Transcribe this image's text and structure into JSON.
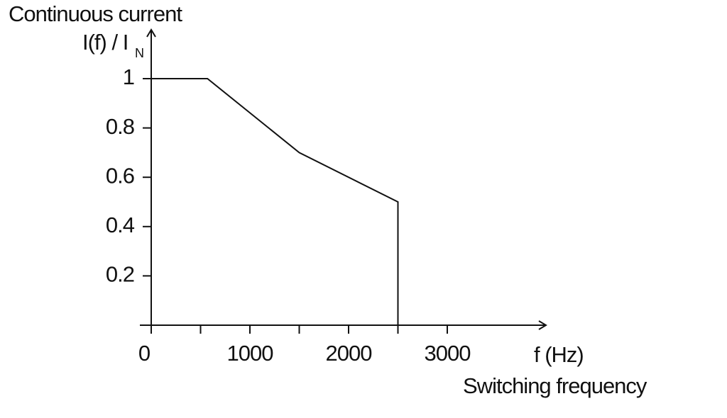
{
  "chart_data": {
    "type": "line",
    "title": "Continuous current",
    "ylabel": "I(f) / I",
    "ylabel_subscript": "N",
    "xlabel": "f (Hz)",
    "xlabel_title": "Switching frequency",
    "x": [
      0,
      570,
      1500,
      2500,
      2500
    ],
    "values": [
      1,
      1,
      0.7,
      0.5,
      0
    ],
    "color": "#111111",
    "xlim": [
      0,
      4000
    ],
    "ylim": [
      0,
      1.2
    ],
    "xticks": [
      0,
      1000,
      2000,
      3000
    ],
    "xminor_ticks": [
      500,
      1500,
      2500
    ],
    "yticks": [
      0.2,
      0.4,
      0.6,
      0.8,
      1
    ],
    "grid": false
  }
}
